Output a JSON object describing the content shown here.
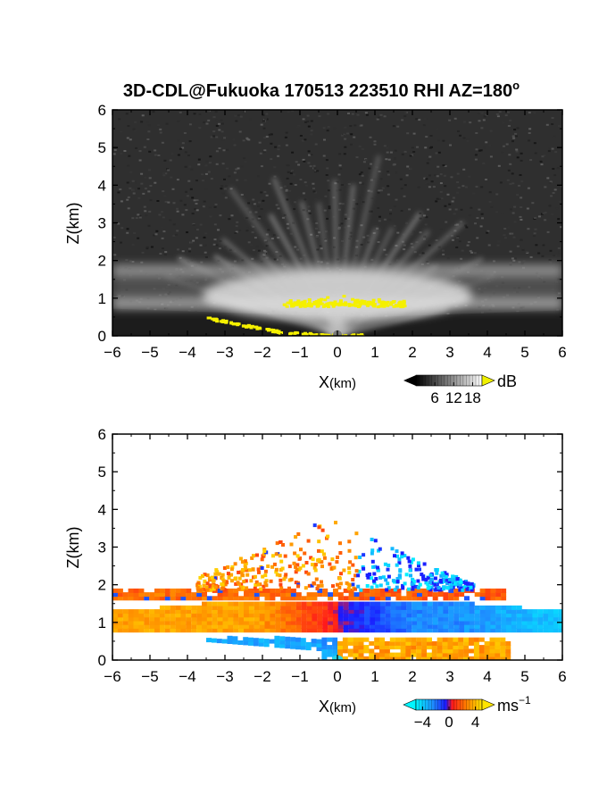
{
  "title": "3D-CDL@Fukuoka 170513 223510 RHI AZ=180",
  "title_superscript": "o",
  "chart_data": [
    {
      "type": "heatmap",
      "name": "panel-reflectivity",
      "xlabel": "X",
      "xlabel_unit": "(km)",
      "ylabel": "Z(km)",
      "xlim": [
        -6,
        6
      ],
      "ylim": [
        0,
        6
      ],
      "xticks": [
        -6,
        -5,
        -4,
        -3,
        -2,
        -1,
        0,
        1,
        2,
        3,
        4,
        5,
        6
      ],
      "yticks": [
        0,
        1,
        2,
        3,
        4,
        5,
        6
      ],
      "colorbar": {
        "unit": "dB",
        "ticks": [
          6,
          12,
          18
        ],
        "range": [
          0,
          21
        ],
        "over_color": "#f0f000",
        "under_color": "#000000"
      },
      "features": {
        "upper_bright_band_z": [
          1.6,
          1.9
        ],
        "lower_bright_band_z": [
          0.7,
          1.0
        ],
        "bright_core_x": [
          -1.5,
          1.8
        ],
        "bright_core_z": [
          0.8,
          0.95
        ],
        "near_ground_band": [
          [
            -3.5,
            0.5
          ],
          [
            -2.5,
            0.3
          ],
          [
            -1.5,
            0.12
          ],
          [
            0,
            0.03
          ],
          [
            0.7,
            0.05
          ]
        ],
        "radar_x": 0
      }
    },
    {
      "type": "heatmap",
      "name": "panel-doppler-velocity",
      "xlabel": "X",
      "xlabel_unit": "(km)",
      "ylabel": "Z(km)",
      "xlim": [
        -6,
        6
      ],
      "ylim": [
        0,
        6
      ],
      "xticks": [
        -6,
        -5,
        -4,
        -3,
        -2,
        -1,
        0,
        1,
        2,
        3,
        4,
        5,
        6
      ],
      "yticks": [
        0,
        1,
        2,
        3,
        4,
        5,
        6
      ],
      "colorbar": {
        "unit": "ms",
        "unit_superscript": "−1",
        "ticks": [
          "−4",
          "0",
          "4"
        ],
        "range": [
          -5,
          5
        ]
      },
      "features": {
        "left_layer_velocity_ms": 3.5,
        "right_layer_velocity_ms": -2.5,
        "upper_layer_z": [
          1.6,
          1.9
        ],
        "main_layer_z": [
          0.75,
          1.5
        ],
        "lower_layer_z": [
          0.0,
          0.55
        ],
        "plume_z_top": 3.8
      }
    }
  ]
}
